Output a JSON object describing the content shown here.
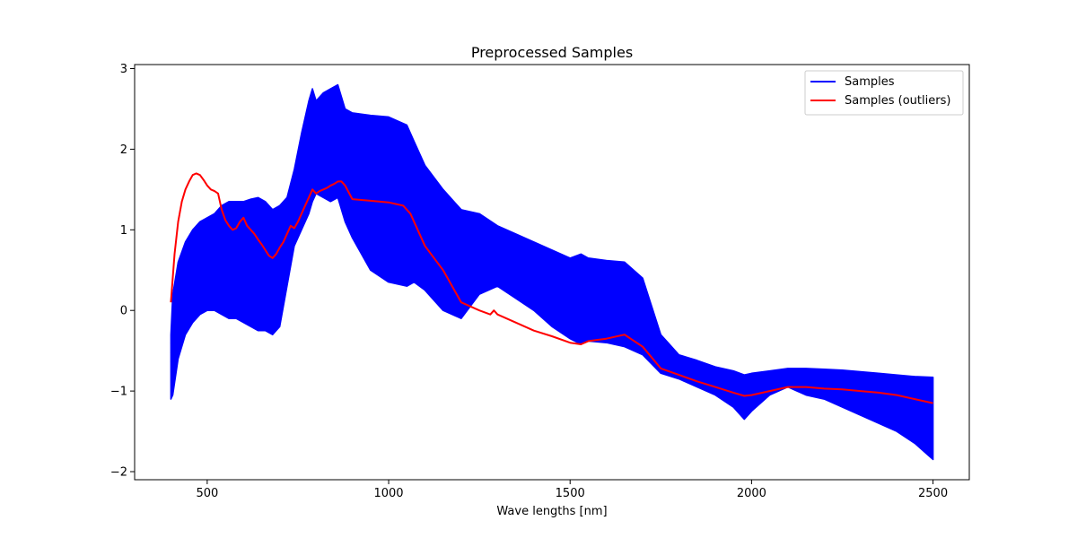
{
  "chart_data": {
    "type": "line",
    "title": "Preprocessed Samples",
    "xlabel": "Wave lengths [nm]",
    "ylabel": "",
    "xlim": [
      300,
      2600
    ],
    "ylim": [
      -2.1,
      3.05
    ],
    "xticks": [
      500,
      1000,
      1500,
      2000,
      2500
    ],
    "yticks": [
      -2,
      -1,
      0,
      1,
      2,
      3
    ],
    "ytick_labels": [
      "−2",
      "−1",
      "0",
      "1",
      "2",
      "3"
    ],
    "grid": false,
    "legend": {
      "position": "top-right"
    },
    "colors": {
      "samples": "#0000ff",
      "outlier": "#ff0000"
    },
    "series": [
      {
        "name": "Samples",
        "kind": "band",
        "color": "#0000ff",
        "x": [
          400,
          405,
          420,
          440,
          460,
          480,
          500,
          520,
          540,
          560,
          580,
          600,
          620,
          640,
          660,
          680,
          700,
          720,
          740,
          760,
          780,
          790,
          800,
          820,
          840,
          860,
          880,
          900,
          950,
          1000,
          1050,
          1070,
          1100,
          1150,
          1200,
          1250,
          1300,
          1350,
          1400,
          1450,
          1500,
          1530,
          1550,
          1600,
          1650,
          1700,
          1750,
          1800,
          1850,
          1900,
          1950,
          1980,
          2000,
          2050,
          2100,
          2150,
          2200,
          2250,
          2300,
          2350,
          2400,
          2450,
          2500
        ],
        "upper": [
          -0.3,
          0.2,
          0.6,
          0.85,
          1.0,
          1.1,
          1.15,
          1.2,
          1.3,
          1.35,
          1.35,
          1.35,
          1.38,
          1.4,
          1.35,
          1.25,
          1.3,
          1.4,
          1.75,
          2.2,
          2.6,
          2.75,
          2.6,
          2.7,
          2.75,
          2.8,
          2.5,
          2.45,
          2.42,
          2.4,
          2.3,
          2.1,
          1.8,
          1.5,
          1.25,
          1.2,
          1.05,
          0.95,
          0.85,
          0.75,
          0.65,
          0.7,
          0.65,
          0.62,
          0.6,
          0.4,
          -0.3,
          -0.55,
          -0.62,
          -0.7,
          -0.75,
          -0.8,
          -0.78,
          -0.75,
          -0.72,
          -0.72,
          -0.73,
          -0.74,
          -0.76,
          -0.78,
          -0.8,
          -0.82,
          -0.83
        ],
        "lower": [
          -1.1,
          -1.05,
          -0.6,
          -0.3,
          -0.15,
          -0.05,
          0.0,
          0.0,
          -0.05,
          -0.1,
          -0.1,
          -0.15,
          -0.2,
          -0.25,
          -0.25,
          -0.3,
          -0.2,
          0.3,
          0.8,
          1.0,
          1.2,
          1.35,
          1.45,
          1.4,
          1.35,
          1.4,
          1.1,
          0.9,
          0.5,
          0.35,
          0.3,
          0.35,
          0.25,
          0.0,
          -0.1,
          0.2,
          0.3,
          0.15,
          0.0,
          -0.2,
          -0.35,
          -0.42,
          -0.38,
          -0.4,
          -0.45,
          -0.55,
          -0.78,
          -0.85,
          -0.95,
          -1.05,
          -1.2,
          -1.35,
          -1.25,
          -1.05,
          -0.95,
          -1.05,
          -1.1,
          -1.2,
          -1.3,
          -1.4,
          -1.5,
          -1.65,
          -1.85
        ]
      },
      {
        "name": "Samples (outliers)",
        "kind": "line",
        "color": "#ff0000",
        "x": [
          400,
          410,
          420,
          430,
          440,
          450,
          460,
          470,
          480,
          490,
          500,
          510,
          520,
          530,
          540,
          550,
          560,
          570,
          580,
          590,
          600,
          610,
          620,
          630,
          640,
          650,
          660,
          670,
          680,
          690,
          700,
          710,
          720,
          730,
          740,
          750,
          760,
          770,
          780,
          790,
          800,
          810,
          820,
          830,
          840,
          850,
          860,
          870,
          880,
          900,
          950,
          1000,
          1020,
          1040,
          1060,
          1080,
          1100,
          1150,
          1200,
          1250,
          1280,
          1290,
          1300,
          1350,
          1400,
          1450,
          1500,
          1530,
          1550,
          1600,
          1650,
          1700,
          1750,
          1800,
          1850,
          1900,
          1950,
          1980,
          2000,
          2050,
          2100,
          2150,
          2200,
          2250,
          2300,
          2350,
          2400,
          2450,
          2500
        ],
        "y": [
          0.1,
          0.7,
          1.1,
          1.35,
          1.5,
          1.6,
          1.68,
          1.7,
          1.68,
          1.62,
          1.55,
          1.5,
          1.48,
          1.45,
          1.25,
          1.12,
          1.05,
          1.0,
          1.02,
          1.1,
          1.15,
          1.05,
          1.0,
          0.95,
          0.88,
          0.82,
          0.75,
          0.68,
          0.65,
          0.7,
          0.78,
          0.85,
          0.95,
          1.05,
          1.02,
          1.1,
          1.2,
          1.3,
          1.4,
          1.5,
          1.45,
          1.48,
          1.5,
          1.52,
          1.55,
          1.57,
          1.6,
          1.6,
          1.55,
          1.38,
          1.36,
          1.34,
          1.32,
          1.3,
          1.2,
          1.0,
          0.8,
          0.5,
          0.1,
          0.0,
          -0.05,
          0.0,
          -0.05,
          -0.15,
          -0.25,
          -0.32,
          -0.4,
          -0.42,
          -0.38,
          -0.35,
          -0.3,
          -0.45,
          -0.72,
          -0.8,
          -0.88,
          -0.95,
          -1.02,
          -1.06,
          -1.05,
          -1.0,
          -0.95,
          -0.95,
          -0.97,
          -0.98,
          -1.0,
          -1.02,
          -1.05,
          -1.1,
          -1.15
        ]
      }
    ]
  }
}
